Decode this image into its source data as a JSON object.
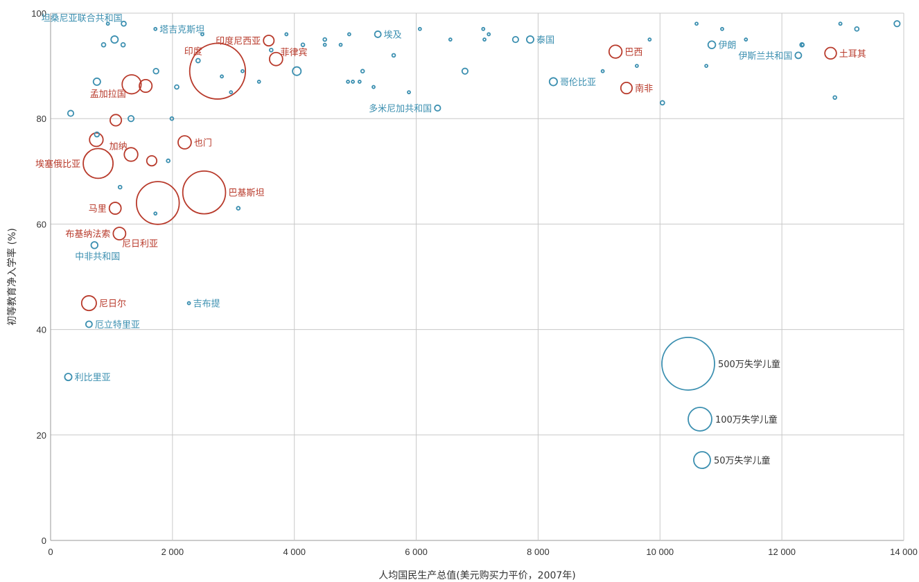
{
  "colors": {
    "blue": "#3b8fb0",
    "red": "#b83a2b"
  },
  "chart_data": {
    "type": "scatter",
    "title": "",
    "xlabel": "人均国民生产总值(美元购买力平价，2007年)",
    "ylabel": "初等教育净入学率 (%)",
    "xlim": [
      0,
      14000
    ],
    "ylim": [
      0,
      100
    ],
    "x_ticks": [
      0,
      2000,
      4000,
      6000,
      8000,
      10000,
      12000,
      14000
    ],
    "x_tick_labels": [
      "0",
      "2 000",
      "4 000",
      "6 000",
      "8 000",
      "10 000",
      "12 000",
      "14 000"
    ],
    "y_ticks": [
      0,
      20,
      40,
      60,
      80,
      100
    ],
    "y_tick_labels": [
      "0",
      "20",
      "40",
      "60",
      "80",
      "100"
    ],
    "grid": true,
    "bubble_size_unit": "out_of_school_children",
    "legend": [
      {
        "label": "500万失学儿童",
        "size": 5000000
      },
      {
        "label": "100万失学儿童",
        "size": 1000000
      },
      {
        "label": "50万失学儿童",
        "size": 500000
      }
    ],
    "points": [
      {
        "x": 2740,
        "y": 89,
        "size": 5600000,
        "color": "red",
        "label": "印度",
        "label_pos": "upper-left"
      },
      {
        "x": 2520,
        "y": 66,
        "size": 3300000,
        "color": "red",
        "label": "巴基斯坦"
      },
      {
        "x": 1760,
        "y": 64,
        "size": 3300000,
        "color": "red",
        "label": ""
      },
      {
        "x": 780,
        "y": 71.5,
        "size": 1600000,
        "color": "red",
        "label": "埃塞俄比亚",
        "label_pos": "left"
      },
      {
        "x": 1330,
        "y": 86.5,
        "size": 650000,
        "color": "red",
        "label": "孟加拉国",
        "label_pos": "lower-left"
      },
      {
        "x": 1560,
        "y": 86.2,
        "size": 290000,
        "color": "red",
        "label": ""
      },
      {
        "x": 1070,
        "y": 79.7,
        "size": 230000,
        "color": "red",
        "label": ""
      },
      {
        "x": 750,
        "y": 76,
        "size": 330000,
        "color": "red",
        "label": ""
      },
      {
        "x": 1320,
        "y": 73.2,
        "size": 330000,
        "color": "red",
        "label": "加纳",
        "label_pos": "upper-left"
      },
      {
        "x": 1660,
        "y": 72,
        "size": 180000,
        "color": "red",
        "label": ""
      },
      {
        "x": 2200,
        "y": 75.5,
        "size": 310000,
        "color": "red",
        "label": "也门"
      },
      {
        "x": 1060,
        "y": 63,
        "size": 250000,
        "color": "red",
        "label": "马里",
        "label_pos": "left"
      },
      {
        "x": 1130,
        "y": 58.2,
        "size": 280000,
        "color": "red",
        "label": "布基纳法索",
        "label_pos": "left"
      },
      {
        "x": 1130,
        "y": 58.2,
        "size": 0,
        "color": "red",
        "label": "尼日利亚",
        "label_pos": "lower-right"
      },
      {
        "x": 630,
        "y": 45,
        "size": 390000,
        "color": "red",
        "label": "尼日尔"
      },
      {
        "x": 3580,
        "y": 94.8,
        "size": 200000,
        "color": "red",
        "label": "印度尼西亚",
        "label_pos": "left"
      },
      {
        "x": 3700,
        "y": 91.3,
        "size": 310000,
        "color": "red",
        "label": "菲律宾",
        "label_pos": "upper-right"
      },
      {
        "x": 9270,
        "y": 92.7,
        "size": 300000,
        "color": "red",
        "label": "巴西"
      },
      {
        "x": 9450,
        "y": 85.8,
        "size": 230000,
        "color": "red",
        "label": "南非"
      },
      {
        "x": 12800,
        "y": 92.4,
        "size": 240000,
        "color": "red",
        "label": "土耳其"
      },
      {
        "x": 1200,
        "y": 98,
        "size": 40000,
        "color": "blue",
        "label": "坦桑尼亚联合共和国",
        "label_pos": "upper-left"
      },
      {
        "x": 940,
        "y": 98,
        "size": 4000,
        "color": "blue",
        "label": ""
      },
      {
        "x": 1720,
        "y": 97,
        "size": 3000,
        "color": "blue",
        "label": "塔吉克斯坦"
      },
      {
        "x": 1050,
        "y": 95,
        "size": 90000,
        "color": "blue",
        "label": ""
      },
      {
        "x": 870,
        "y": 94,
        "size": 30000,
        "color": "blue",
        "label": ""
      },
      {
        "x": 1190,
        "y": 94,
        "size": 30000,
        "color": "blue",
        "label": ""
      },
      {
        "x": 1730,
        "y": 89,
        "size": 50000,
        "color": "blue",
        "label": ""
      },
      {
        "x": 760,
        "y": 87,
        "size": 90000,
        "color": "blue",
        "label": ""
      },
      {
        "x": 2070,
        "y": 86,
        "size": 30000,
        "color": "blue",
        "label": ""
      },
      {
        "x": 330,
        "y": 81,
        "size": 60000,
        "color": "blue",
        "label": ""
      },
      {
        "x": 1320,
        "y": 80,
        "size": 60000,
        "color": "blue",
        "label": ""
      },
      {
        "x": 1990,
        "y": 80,
        "size": 20000,
        "color": "blue",
        "label": ""
      },
      {
        "x": 760,
        "y": 77,
        "size": 40000,
        "color": "blue",
        "label": ""
      },
      {
        "x": 1930,
        "y": 72,
        "size": 20000,
        "color": "blue",
        "label": ""
      },
      {
        "x": 1140,
        "y": 67,
        "size": 20000,
        "color": "blue",
        "label": ""
      },
      {
        "x": 1720,
        "y": 62,
        "size": 5000,
        "color": "blue",
        "label": ""
      },
      {
        "x": 3080,
        "y": 63,
        "size": 20000,
        "color": "blue",
        "label": ""
      },
      {
        "x": 720,
        "y": 56,
        "size": 80000,
        "color": "blue",
        "label": "中非共和国",
        "label_pos": "below"
      },
      {
        "x": 2270,
        "y": 45,
        "size": 10000,
        "color": "blue",
        "label": "吉布提"
      },
      {
        "x": 630,
        "y": 41,
        "size": 70000,
        "color": "blue",
        "label": "厄立特里亚"
      },
      {
        "x": 290,
        "y": 31,
        "size": 90000,
        "color": "blue",
        "label": "利比里亚"
      },
      {
        "x": 2420,
        "y": 91,
        "size": 30000,
        "color": "blue",
        "label": ""
      },
      {
        "x": 2490,
        "y": 96,
        "size": 4000,
        "color": "blue",
        "label": ""
      },
      {
        "x": 2810,
        "y": 88,
        "size": 5000,
        "color": "blue",
        "label": ""
      },
      {
        "x": 2960,
        "y": 85,
        "size": 4000,
        "color": "blue",
        "label": ""
      },
      {
        "x": 3150,
        "y": 89,
        "size": 4000,
        "color": "blue",
        "label": ""
      },
      {
        "x": 3420,
        "y": 87,
        "size": 3000,
        "color": "blue",
        "label": ""
      },
      {
        "x": 3620,
        "y": 93,
        "size": 20000,
        "color": "blue",
        "label": ""
      },
      {
        "x": 3870,
        "y": 96,
        "size": 3000,
        "color": "blue",
        "label": ""
      },
      {
        "x": 4040,
        "y": 89,
        "size": 130000,
        "color": "blue",
        "label": ""
      },
      {
        "x": 4140,
        "y": 94,
        "size": 20000,
        "color": "blue",
        "label": ""
      },
      {
        "x": 4500,
        "y": 95,
        "size": 20000,
        "color": "blue",
        "label": ""
      },
      {
        "x": 4500,
        "y": 94,
        "size": 10000,
        "color": "blue",
        "label": ""
      },
      {
        "x": 4760,
        "y": 94,
        "size": 5000,
        "color": "blue",
        "label": ""
      },
      {
        "x": 4880,
        "y": 87,
        "size": 6000,
        "color": "blue",
        "label": ""
      },
      {
        "x": 4900,
        "y": 96,
        "size": 3000,
        "color": "blue",
        "label": ""
      },
      {
        "x": 4960,
        "y": 87,
        "size": 5000,
        "color": "blue",
        "label": ""
      },
      {
        "x": 5070,
        "y": 87,
        "size": 8000,
        "color": "blue",
        "label": ""
      },
      {
        "x": 5120,
        "y": 89,
        "size": 20000,
        "color": "blue",
        "label": ""
      },
      {
        "x": 5300,
        "y": 86,
        "size": 12000,
        "color": "blue",
        "label": ""
      },
      {
        "x": 5370,
        "y": 96,
        "size": 70000,
        "color": "blue",
        "label": "埃及"
      },
      {
        "x": 5630,
        "y": 92,
        "size": 20000,
        "color": "blue",
        "label": ""
      },
      {
        "x": 5880,
        "y": 85,
        "size": 3000,
        "color": "blue",
        "label": ""
      },
      {
        "x": 6060,
        "y": 97,
        "size": 2000,
        "color": "blue",
        "label": ""
      },
      {
        "x": 6350,
        "y": 82,
        "size": 60000,
        "color": "blue",
        "label": "多米尼加共和国",
        "label_pos": "left"
      },
      {
        "x": 6560,
        "y": 95,
        "size": 6000,
        "color": "blue",
        "label": ""
      },
      {
        "x": 6800,
        "y": 89,
        "size": 60000,
        "color": "blue",
        "label": ""
      },
      {
        "x": 7100,
        "y": 97,
        "size": 5000,
        "color": "blue",
        "label": ""
      },
      {
        "x": 7120,
        "y": 95,
        "size": 8000,
        "color": "blue",
        "label": ""
      },
      {
        "x": 7190,
        "y": 96,
        "size": 8000,
        "color": "blue",
        "label": ""
      },
      {
        "x": 7630,
        "y": 95,
        "size": 60000,
        "color": "blue",
        "label": ""
      },
      {
        "x": 7870,
        "y": 95,
        "size": 90000,
        "color": "blue",
        "label": "泰国"
      },
      {
        "x": 8250,
        "y": 87,
        "size": 110000,
        "color": "blue",
        "label": "哥伦比亚"
      },
      {
        "x": 9060,
        "y": 89,
        "size": 3000,
        "color": "blue",
        "label": ""
      },
      {
        "x": 9620,
        "y": 90,
        "size": 5000,
        "color": "blue",
        "label": ""
      },
      {
        "x": 9830,
        "y": 95,
        "size": 5000,
        "color": "blue",
        "label": ""
      },
      {
        "x": 10040,
        "y": 83,
        "size": 30000,
        "color": "blue",
        "label": ""
      },
      {
        "x": 10600,
        "y": 98,
        "size": 3000,
        "color": "blue",
        "label": ""
      },
      {
        "x": 10760,
        "y": 90,
        "size": 10000,
        "color": "blue",
        "label": ""
      },
      {
        "x": 10850,
        "y": 94,
        "size": 100000,
        "color": "blue",
        "label": "伊朗"
      },
      {
        "x": 11020,
        "y": 97,
        "size": 3000,
        "color": "blue",
        "label": ""
      },
      {
        "x": 11410,
        "y": 95,
        "size": 3000,
        "color": "blue",
        "label": ""
      },
      {
        "x": 12270,
        "y": 92,
        "size": 70000,
        "color": "blue",
        "label": "伊斯兰共和国",
        "label_pos": "left"
      },
      {
        "x": 12330,
        "y": 94,
        "size": 30000,
        "color": "blue",
        "label": ""
      },
      {
        "x": 12340,
        "y": 94,
        "size": 10000,
        "color": "blue",
        "label": ""
      },
      {
        "x": 12870,
        "y": 84,
        "size": 20000,
        "color": "blue",
        "label": ""
      },
      {
        "x": 12960,
        "y": 98,
        "size": 15000,
        "color": "blue",
        "label": ""
      },
      {
        "x": 13230,
        "y": 97,
        "size": 30000,
        "color": "blue",
        "label": ""
      },
      {
        "x": 13890,
        "y": 98,
        "size": 60000,
        "color": "blue",
        "label": ""
      }
    ]
  }
}
